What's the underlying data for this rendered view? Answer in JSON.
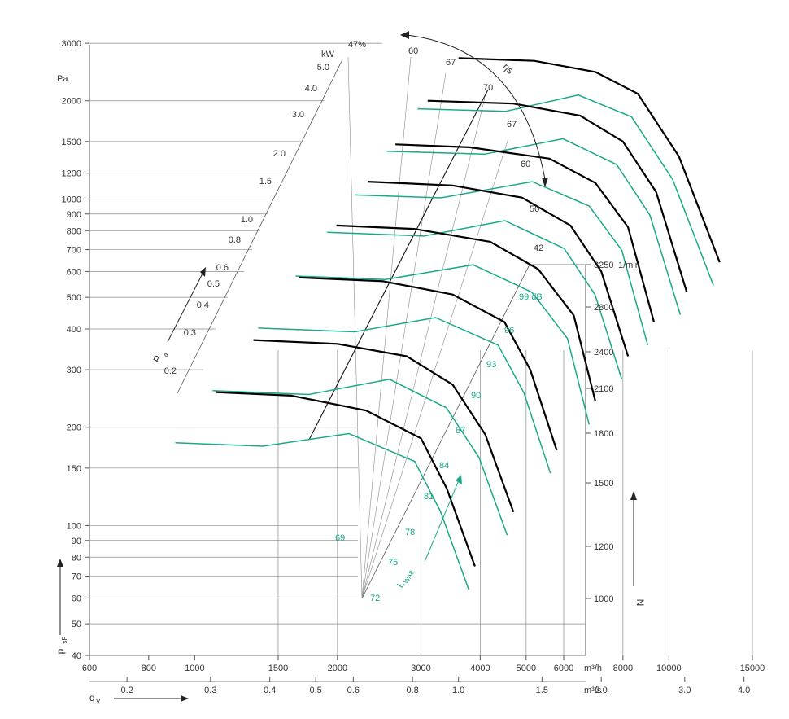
{
  "chart_data": {
    "type": "line",
    "title": "",
    "colors": {
      "speed_curves": "#000000",
      "sound_curves": "#1aa88a",
      "grid": "#555555",
      "text": "#333333"
    },
    "y_axis": {
      "symbol": "p",
      "subscript": "sF",
      "unit": "Pa",
      "scale": "log",
      "range": [
        40,
        3000
      ],
      "ticks": [
        3000,
        2000,
        1500,
        1200,
        1000,
        900,
        800,
        700,
        600,
        500,
        400,
        300,
        200,
        150,
        100,
        90,
        80,
        70,
        60,
        50,
        40
      ]
    },
    "x_axis": {
      "symbol": "q",
      "subscript": "V",
      "scale": "log",
      "unit_primary": "m³/h",
      "ticks_primary": [
        600,
        800,
        1000,
        1500,
        2000,
        3000,
        4000,
        5000,
        6000,
        8000,
        10000,
        15000
      ],
      "unit_secondary": "m³/s",
      "ticks_secondary": [
        0.2,
        0.3,
        0.4,
        0.5,
        0.6,
        0.8,
        1.0,
        1.5,
        2.0,
        3.0,
        4.0
      ]
    },
    "speed_axis": {
      "symbol": "N",
      "unit": "1/min",
      "speeds": [
        3250,
        2800,
        2400,
        2100,
        1800,
        1500,
        1200,
        1000
      ]
    },
    "power_axis": {
      "symbol": "P",
      "subscript": "a",
      "unit": "kW",
      "ticks": [
        "5.0",
        "4.0",
        "3.0",
        "2.0",
        "1.5",
        "1.0",
        "0.8",
        "0.6",
        "0.5",
        "0.4",
        "0.3",
        "0.2"
      ]
    },
    "efficiency_axis": {
      "symbol": "ηs",
      "labels": [
        "47%",
        "60",
        "67",
        "70",
        "67",
        "60",
        "50",
        "42"
      ]
    },
    "sound_axis": {
      "symbol": "L",
      "subscript": "WA8",
      "labels": [
        "69",
        "72",
        "75",
        "78",
        "81",
        "84",
        "87",
        "90",
        "93",
        "96",
        "99 dB"
      ]
    },
    "series": [
      {
        "speed": 3250,
        "q_m3h": [
          3600,
          5200,
          7000,
          8600,
          10500,
          12800
        ],
        "p_pa": [
          2700,
          2650,
          2450,
          2100,
          1350,
          640
        ]
      },
      {
        "speed": 2800,
        "q_m3h": [
          3100,
          4700,
          6500,
          8000,
          9400,
          10900
        ],
        "p_pa": [
          2000,
          1960,
          1800,
          1500,
          1050,
          520
        ]
      },
      {
        "speed": 2400,
        "q_m3h": [
          2650,
          3800,
          5600,
          7000,
          8200,
          9300
        ],
        "p_pa": [
          1470,
          1440,
          1330,
          1120,
          820,
          420
        ]
      },
      {
        "speed": 2100,
        "q_m3h": [
          2320,
          3500,
          4900,
          6200,
          7200,
          8200
        ],
        "p_pa": [
          1130,
          1100,
          1010,
          830,
          600,
          330
        ]
      },
      {
        "speed": 1800,
        "q_m3h": [
          1990,
          2900,
          4200,
          5300,
          6300,
          7000
        ],
        "p_pa": [
          830,
          810,
          740,
          610,
          440,
          240
        ]
      },
      {
        "speed": 1500,
        "q_m3h": [
          1660,
          2500,
          3500,
          4500,
          5100,
          5800
        ],
        "p_pa": [
          575,
          560,
          510,
          420,
          300,
          170
        ]
      },
      {
        "speed": 1200,
        "q_m3h": [
          1330,
          2000,
          2800,
          3500,
          4100,
          4700
        ],
        "p_pa": [
          370,
          360,
          330,
          270,
          190,
          110
        ]
      },
      {
        "speed": 1000,
        "q_m3h": [
          1110,
          1600,
          2300,
          3000,
          3400,
          3900
        ],
        "p_pa": [
          256,
          250,
          225,
          185,
          130,
          75
        ]
      }
    ]
  }
}
